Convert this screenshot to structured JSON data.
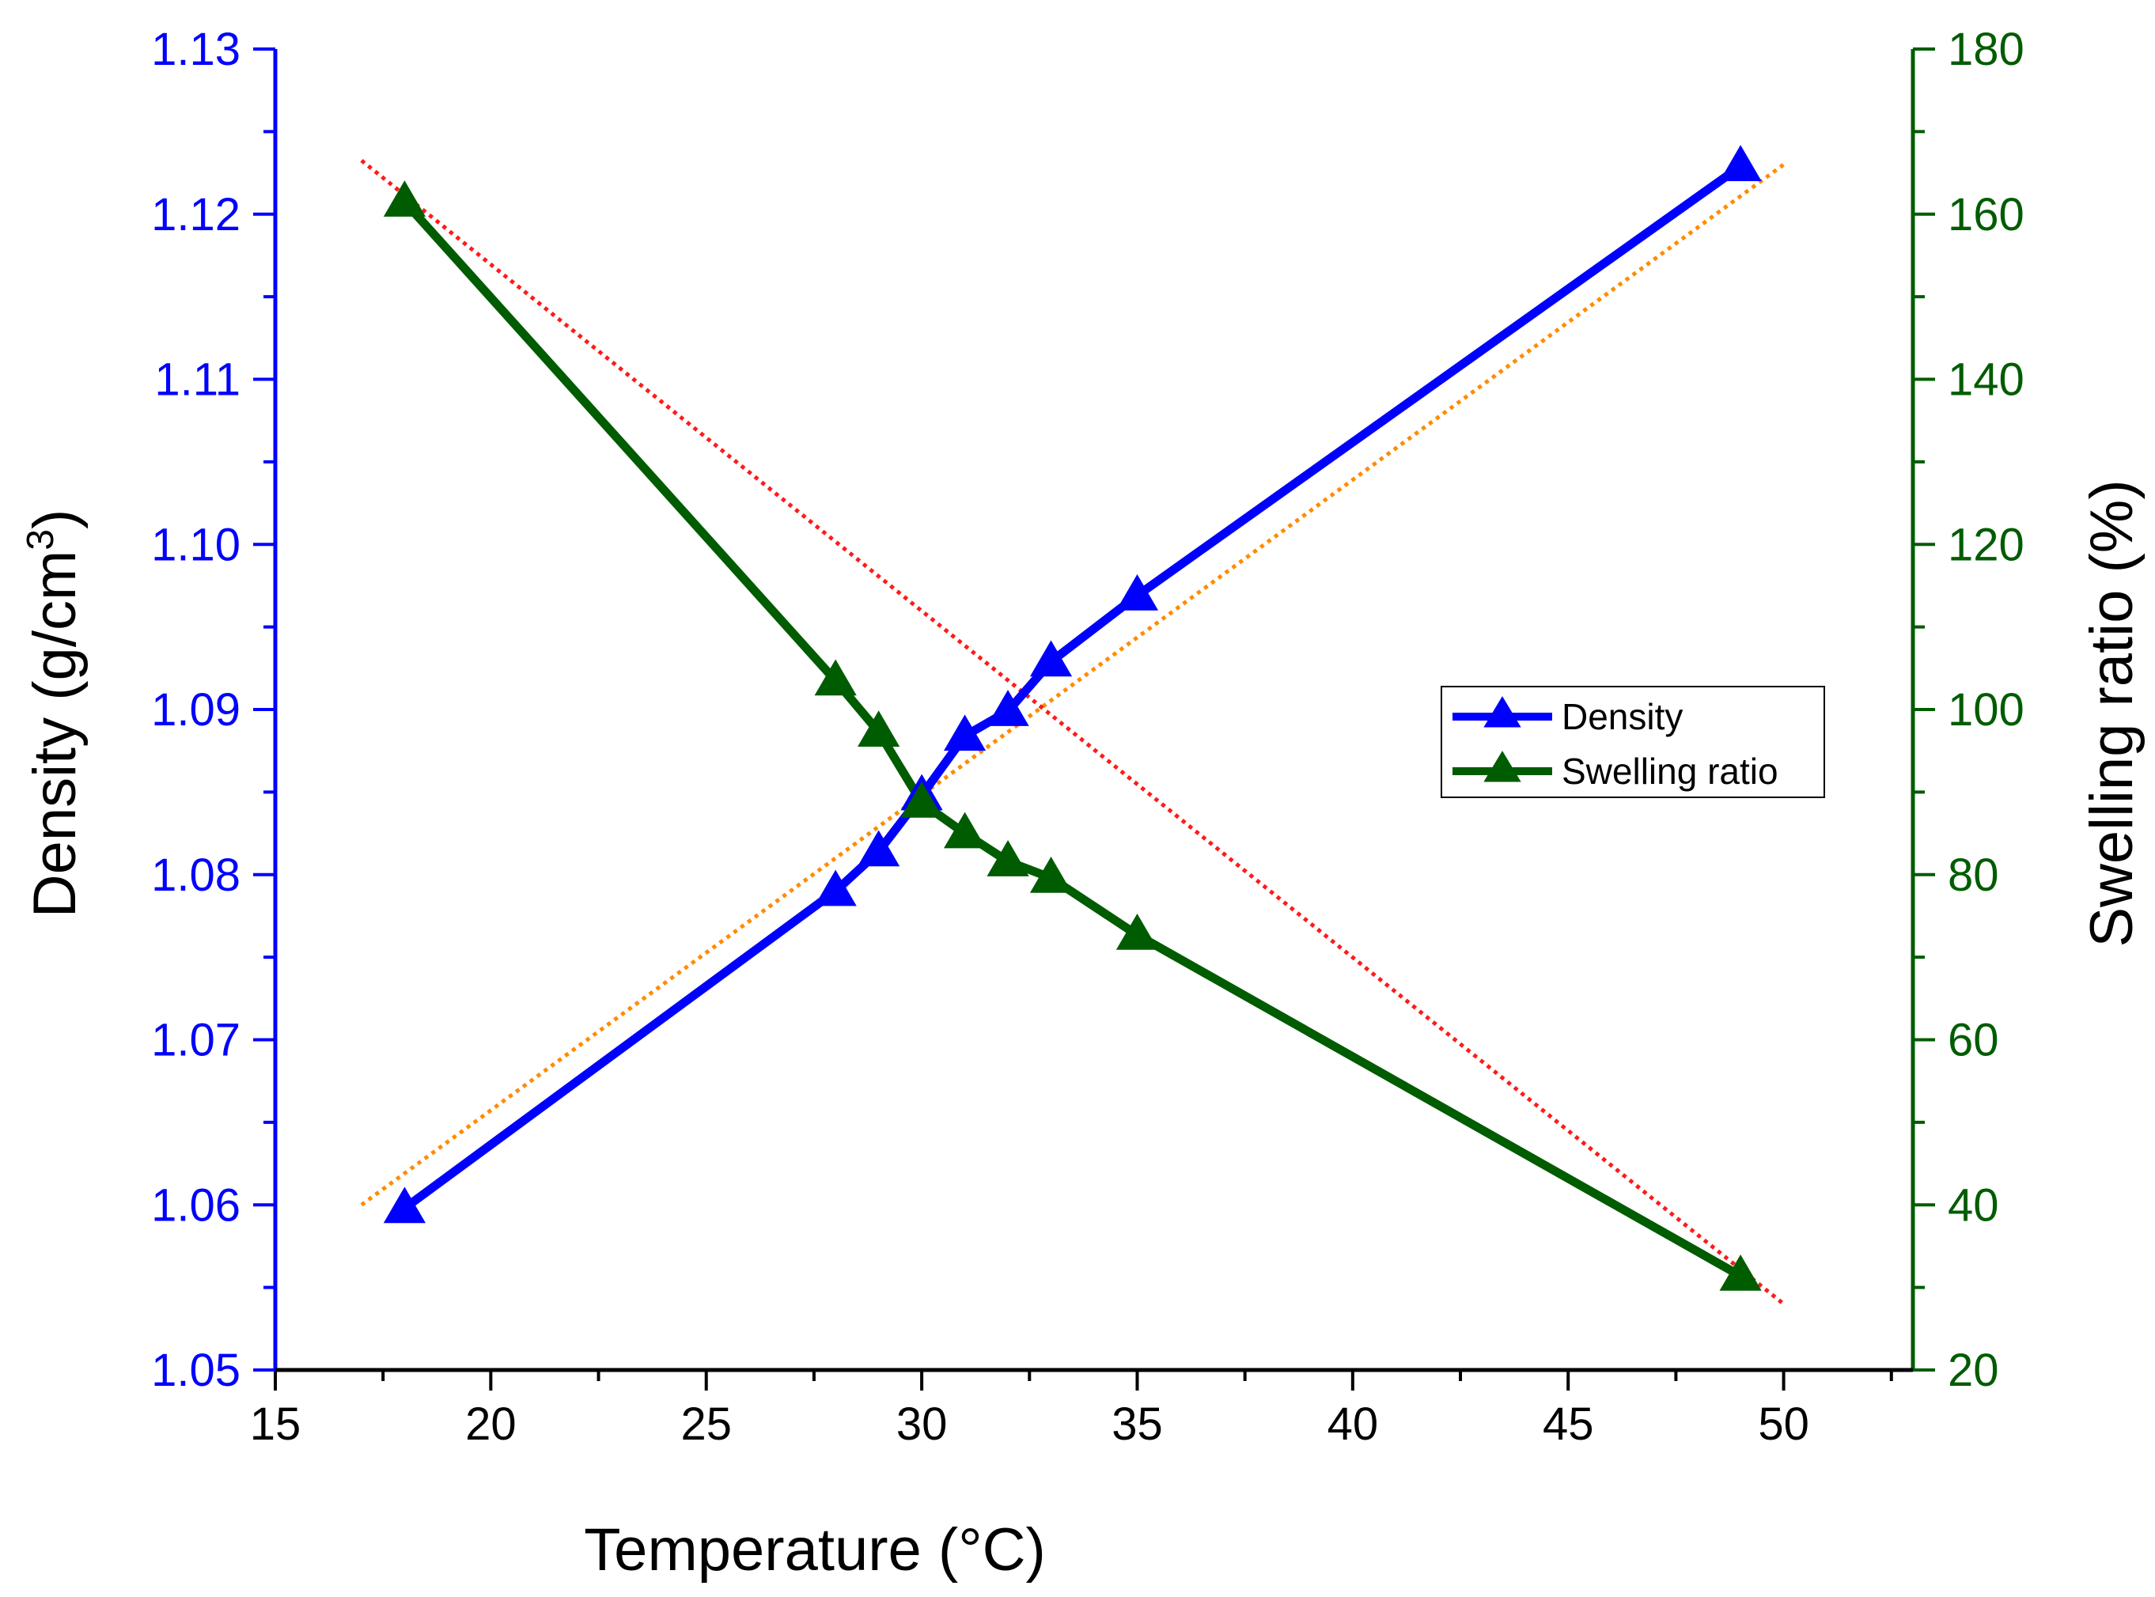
{
  "chart_data": {
    "type": "line",
    "x": [
      18,
      28,
      29,
      30,
      31,
      32,
      33,
      35,
      49
    ],
    "xlabel": "Temperature (°C)",
    "xlim": [
      15,
      53
    ],
    "xticks": [
      15,
      20,
      25,
      30,
      35,
      40,
      45,
      50
    ],
    "ylabel_left": {
      "main": "Density (g/cm",
      "sup": "3",
      "close": ")"
    },
    "ylim_left": [
      1.05,
      1.13
    ],
    "yticks_left": [
      "1.05",
      "1.06",
      "1.07",
      "1.08",
      "1.09",
      "1.10",
      "1.11",
      "1.12",
      "1.13"
    ],
    "ylabel_right": "Swelling ratio (%)",
    "ylim_right": [
      20,
      180
    ],
    "yticks_right": [
      "20",
      "40",
      "60",
      "80",
      "100",
      "120",
      "140",
      "160",
      "180"
    ],
    "legend": {
      "position": "center-right",
      "entries": [
        "Density",
        "Swelling ratio"
      ]
    },
    "series": [
      {
        "name": "Density",
        "axis": "left",
        "color": "#0000ff",
        "marker": "triangle",
        "values": [
          1.0598,
          1.079,
          1.0814,
          1.0848,
          1.0884,
          1.0899,
          1.0929,
          1.0969,
          1.1229
        ]
      },
      {
        "name": "Swelling ratio",
        "axis": "right",
        "color": "#005c00",
        "marker": "triangle",
        "values": [
          161.5,
          103.5,
          97.3,
          88.7,
          85.0,
          81.6,
          79.6,
          72.7,
          31.4
        ]
      }
    ],
    "fits": [
      {
        "name": "Density linear fit",
        "axis": "left",
        "color": "#ff8c00",
        "x": [
          17,
          50
        ],
        "y": [
          1.06,
          1.123
        ]
      },
      {
        "name": "Swelling ratio linear fit",
        "axis": "right",
        "color": "#ff1a1a",
        "x": [
          17,
          50
        ],
        "y": [
          166.5,
          28.0
        ]
      }
    ]
  }
}
